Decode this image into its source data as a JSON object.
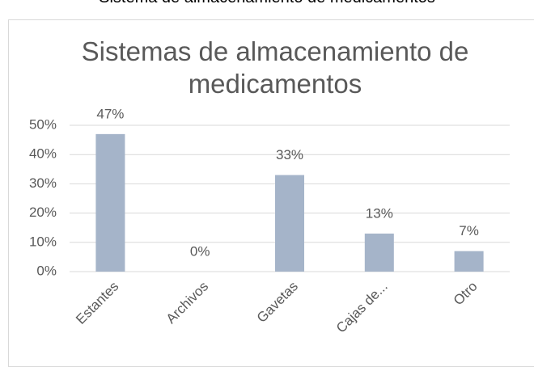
{
  "caption": "Sistema de almacenamiento de medicamentos",
  "chart_data": {
    "type": "bar",
    "title": "Sistemas de almacenamiento de medicamentos",
    "categories": [
      "Estantes",
      "Archivos",
      "Gavetas",
      "Cajas de...",
      "Otro"
    ],
    "values": [
      47,
      0,
      33,
      13,
      7
    ],
    "value_labels": [
      "47%",
      "0%",
      "33%",
      "13%",
      "7%"
    ],
    "color": "#a5b4c9",
    "ylim": [
      0,
      50
    ],
    "yticks": [
      {
        "value": 0,
        "label": "0%"
      },
      {
        "value": 10,
        "label": "10%"
      },
      {
        "value": 20,
        "label": "20%"
      },
      {
        "value": 30,
        "label": "30%"
      },
      {
        "value": 40,
        "label": "40%"
      },
      {
        "value": 50,
        "label": "50%"
      }
    ],
    "grid": true
  }
}
